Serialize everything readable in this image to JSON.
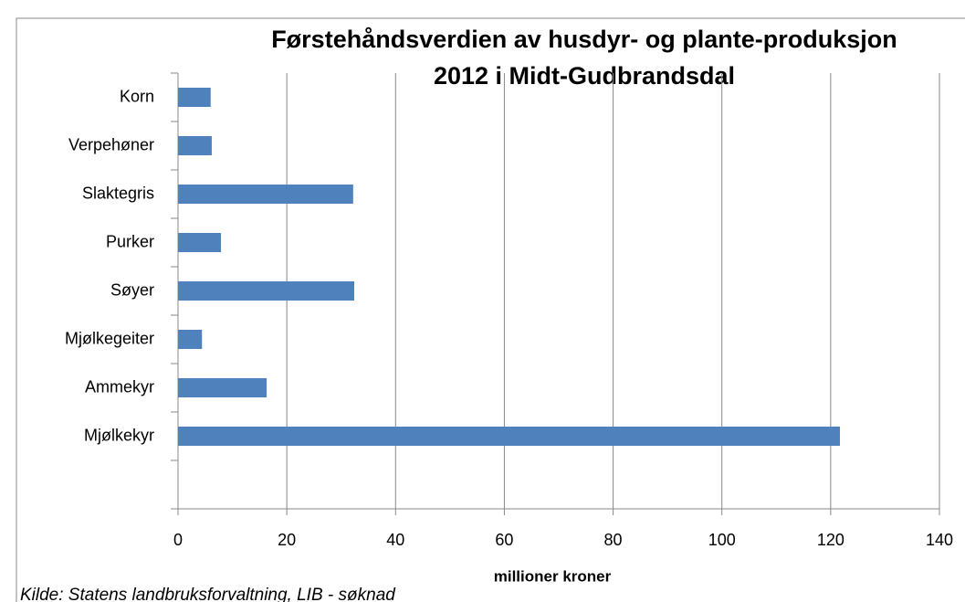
{
  "chart_data": {
    "type": "bar",
    "orientation": "horizontal",
    "title": [
      "Førstehåndsverdien av husdyr- og plante-produksjon",
      "2012 i Midt-Gudbrandsdal"
    ],
    "categories": [
      "Korn",
      "Verpehøner",
      "Slaktegris",
      "Purker",
      "Søyer",
      "Mjølkegeiter",
      "Ammekyr",
      "Mjølkekyr",
      null
    ],
    "values": [
      6.0,
      6.2,
      32.2,
      7.9,
      32.4,
      4.4,
      16.3,
      121.7,
      null
    ],
    "color": "#4f81bd",
    "xlabel": "millioner kroner",
    "xlim": [
      0,
      140
    ],
    "xticks": [
      0,
      20,
      40,
      60,
      80,
      100,
      120,
      140
    ],
    "grid": true
  },
  "source": "Kilde: Statens landbruksforvaltning, LIB - søknad"
}
